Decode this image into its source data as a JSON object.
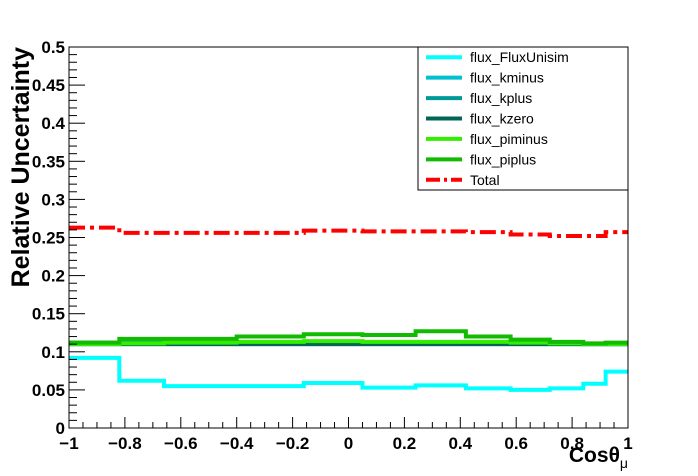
{
  "chart_data": {
    "type": "line",
    "step": true,
    "xlabel": "Cosθ",
    "xlabel_sub": "μ",
    "ylabel": "Relative Uncertainty",
    "xlim": [
      -1,
      1
    ],
    "ylim": [
      0,
      0.5
    ],
    "x_ticks": [
      "−1",
      "−0.8",
      "−0.6",
      "−0.4",
      "−0.2",
      "0",
      "0.2",
      "0.4",
      "0.6",
      "0.8",
      "1"
    ],
    "y_ticks": [
      "0",
      "0.05",
      "0.1",
      "0.15",
      "0.2",
      "0.25",
      "0.3",
      "0.35",
      "0.4",
      "0.45",
      "0.5"
    ],
    "bin_edges": [
      -1,
      -0.82,
      -0.66,
      -0.4,
      -0.16,
      0.05,
      0.24,
      0.42,
      0.58,
      0.72,
      0.84,
      0.92,
      1
    ],
    "series": [
      {
        "name": "flux_FluxUnisim",
        "color": "#00ffff",
        "style": "solid",
        "values": [
          0.092,
          0.062,
          0.055,
          0.055,
          0.059,
          0.053,
          0.056,
          0.052,
          0.05,
          0.052,
          0.058,
          0.074
        ]
      },
      {
        "name": "flux_kminus",
        "color": "#00c0d0",
        "style": "solid",
        "values": [
          0.11,
          0.11,
          0.11,
          0.11,
          0.11,
          0.11,
          0.11,
          0.11,
          0.11,
          0.11,
          0.11,
          0.11
        ]
      },
      {
        "name": "flux_kplus",
        "color": "#009999",
        "style": "solid",
        "values": [
          0.112,
          0.112,
          0.111,
          0.111,
          0.112,
          0.112,
          0.112,
          0.112,
          0.112,
          0.111,
          0.11,
          0.11
        ]
      },
      {
        "name": "flux_kzero",
        "color": "#006655",
        "style": "solid",
        "values": [
          0.11,
          0.11,
          0.11,
          0.11,
          0.11,
          0.11,
          0.11,
          0.11,
          0.11,
          0.11,
          0.11,
          0.11
        ]
      },
      {
        "name": "flux_piminus",
        "color": "#33ee00",
        "style": "solid",
        "values": [
          0.11,
          0.111,
          0.112,
          0.113,
          0.114,
          0.113,
          0.113,
          0.113,
          0.112,
          0.111,
          0.11,
          0.11
        ]
      },
      {
        "name": "flux_piplus",
        "color": "#11bb00",
        "style": "solid",
        "values": [
          0.112,
          0.117,
          0.117,
          0.12,
          0.123,
          0.122,
          0.127,
          0.12,
          0.116,
          0.113,
          0.111,
          0.112
        ]
      },
      {
        "name": "Total",
        "color": "#ff0000",
        "style": "dashdot",
        "values": [
          0.263,
          0.256,
          0.256,
          0.256,
          0.259,
          0.258,
          0.258,
          0.257,
          0.254,
          0.252,
          0.252,
          0.257
        ]
      }
    ]
  }
}
